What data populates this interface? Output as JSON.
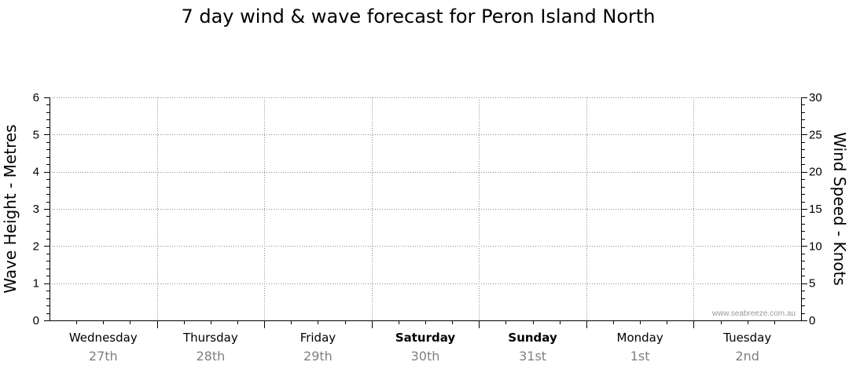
{
  "chart_data": {
    "type": "line",
    "title": "7 day wind & wave forecast for Peron Island North",
    "left_axis": {
      "label": "Wave Height - Metres",
      "range": [
        0,
        6
      ],
      "ticks": [
        "0",
        "1",
        "2",
        "3",
        "4",
        "5",
        "6"
      ]
    },
    "right_axis": {
      "label": "Wind Speed - Knots",
      "range": [
        0,
        30
      ],
      "ticks": [
        "0",
        "5",
        "10",
        "15",
        "20",
        "25",
        "30"
      ]
    },
    "days": [
      {
        "name": "Wednesday",
        "date": "27th",
        "bold": false
      },
      {
        "name": "Thursday",
        "date": "28th",
        "bold": false
      },
      {
        "name": "Friday",
        "date": "29th",
        "bold": false
      },
      {
        "name": "Saturday",
        "date": "30th",
        "bold": true
      },
      {
        "name": "Sunday",
        "date": "31st",
        "bold": true
      },
      {
        "name": "Monday",
        "date": "1st",
        "bold": false
      },
      {
        "name": "Tuesday",
        "date": "2nd",
        "bold": false
      }
    ],
    "series": [],
    "grid": true,
    "watermark": "www.seabreeze.com.au"
  }
}
